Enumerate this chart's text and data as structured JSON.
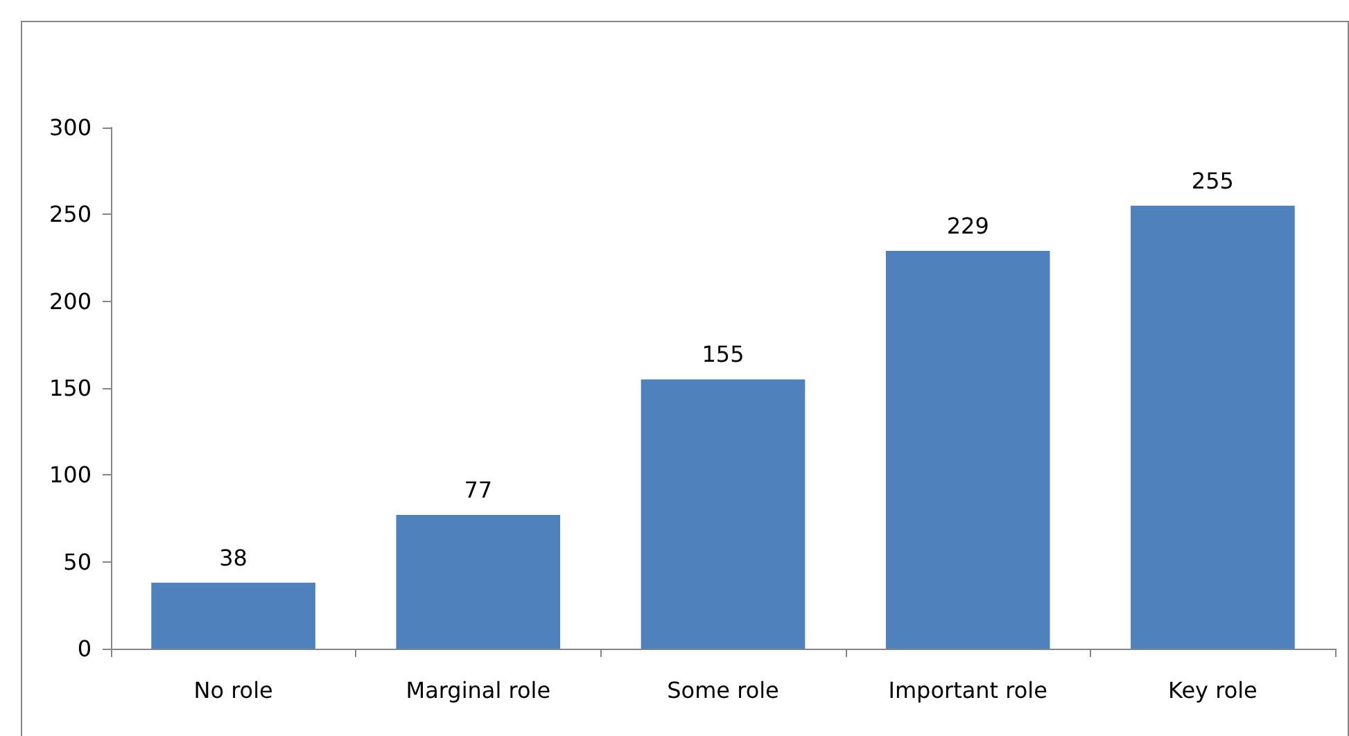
{
  "chart_data": {
    "type": "bar",
    "categories": [
      "No role",
      "Marginal role",
      "Some role",
      "Important role",
      "Key role"
    ],
    "values": [
      38,
      77,
      155,
      229,
      255
    ],
    "color": "#4f81bd",
    "ylim": [
      0,
      300
    ],
    "yticks": [
      0,
      50,
      100,
      150,
      200,
      250,
      300
    ],
    "grid": false,
    "data_labels": true
  }
}
